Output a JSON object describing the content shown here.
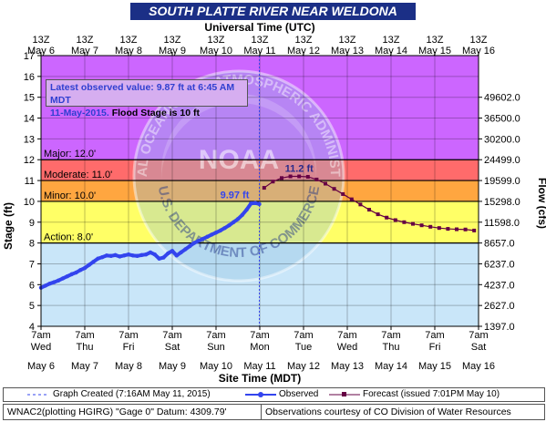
{
  "header": {
    "title": "SOUTH PLATTE RIVER NEAR WELDONA",
    "top_axis_title": "Universal Time (UTC)",
    "bottom_axis_title": "Site Time (MDT)"
  },
  "observation_box": {
    "line1": "Latest observed value: 9.87 ft at 6:45 AM MDT",
    "line2_blue": "11-May-2015.",
    "line2_black": " Flood Stage is 10 ft"
  },
  "watermark": {
    "text": "NATIONAL OCEANIC AND ATMOSPHERIC ADMINISTRATION",
    "bottom_text": "U.S. DEPARTMENT OF COMMERCE",
    "logo": "NOAA"
  },
  "legend": {
    "created": "Graph Created (7:16AM May 11, 2015)",
    "observed": "Observed",
    "forecast": "Forecast (issued 7:01PM May 10)"
  },
  "footer": {
    "left": "WNAC2(plotting HGIRG) \"Gage 0\" Datum: 4309.79'",
    "right": "Observations courtesy of CO Division of Water Resources"
  },
  "chart_data": {
    "type": "line",
    "title": "SOUTH PLATTE RIVER NEAR WELDONA",
    "ylabel": "Stage (ft)",
    "y2label": "Flow (cfs)",
    "xlabel": "Site Time (MDT)",
    "x2label": "Universal Time (UTC)",
    "ylim": [
      4,
      17
    ],
    "yticks": [
      4,
      5,
      6,
      7,
      8,
      9,
      10,
      11,
      12,
      13,
      14,
      15,
      16,
      17
    ],
    "flow_ticks": [
      {
        "stage": 4,
        "label": "1397.0"
      },
      {
        "stage": 5,
        "label": "2627.0"
      },
      {
        "stage": 6,
        "label": "4237.0"
      },
      {
        "stage": 7,
        "label": "6237.0"
      },
      {
        "stage": 8,
        "label": "8657.0"
      },
      {
        "stage": 9,
        "label": "11598.0"
      },
      {
        "stage": 10,
        "label": "15298.0"
      },
      {
        "stage": 11,
        "label": "19599.0"
      },
      {
        "stage": 12,
        "label": "24499.0"
      },
      {
        "stage": 13,
        "label": "30200.0"
      },
      {
        "stage": 14,
        "label": "36500.0"
      },
      {
        "stage": 15,
        "label": "49602.0"
      }
    ],
    "xlim_days": [
      0,
      10
    ],
    "utc_ticks": [
      {
        "t1": "13Z",
        "t2": "May 6"
      },
      {
        "t1": "13Z",
        "t2": "May 7"
      },
      {
        "t1": "13Z",
        "t2": "May 8"
      },
      {
        "t1": "13Z",
        "t2": "May 9"
      },
      {
        "t1": "13Z",
        "t2": "May 10"
      },
      {
        "t1": "13Z",
        "t2": "May 11"
      },
      {
        "t1": "13Z",
        "t2": "May 12"
      },
      {
        "t1": "13Z",
        "t2": "May 13"
      },
      {
        "t1": "13Z",
        "t2": "May 14"
      },
      {
        "t1": "13Z",
        "t2": "May 15"
      },
      {
        "t1": "13Z",
        "t2": "May 16"
      }
    ],
    "local_ticks": [
      {
        "t1": "7am",
        "t2": "Wed",
        "t3": "May 6"
      },
      {
        "t1": "7am",
        "t2": "Thu",
        "t3": "May 7"
      },
      {
        "t1": "7am",
        "t2": "Fri",
        "t3": "May 8"
      },
      {
        "t1": "7am",
        "t2": "Sat",
        "t3": "May 9"
      },
      {
        "t1": "7am",
        "t2": "Sun",
        "t3": "May 10"
      },
      {
        "t1": "7am",
        "t2": "Mon",
        "t3": "May 11"
      },
      {
        "t1": "7am",
        "t2": "Tue",
        "t3": "May 12"
      },
      {
        "t1": "7am",
        "t2": "Wed",
        "t3": "May 13"
      },
      {
        "t1": "7am",
        "t2": "Thu",
        "t3": "May 14"
      },
      {
        "t1": "7am",
        "t2": "Fri",
        "t3": "May 15"
      },
      {
        "t1": "7am",
        "t2": "Sat",
        "t3": "May 16"
      }
    ],
    "flood_categories": [
      {
        "name": "Action",
        "label": "Action: 8.0'",
        "from": 8,
        "to": 10,
        "color": "#ffff66"
      },
      {
        "name": "Minor",
        "label": "Minor: 10.0'",
        "from": 10,
        "to": 11,
        "color": "#ffa640"
      },
      {
        "name": "Moderate",
        "label": "Moderate: 11.0'",
        "from": 11,
        "to": 12,
        "color": "#ff6b6b"
      },
      {
        "name": "Major",
        "label": "Major: 12.0'",
        "from": 12,
        "to": 17,
        "color": "#cc66ff"
      }
    ],
    "below_action_color": "#c9e6f9",
    "now_day": 4.99,
    "series": [
      {
        "name": "Observed",
        "color": "#3344ee",
        "x": [
          0,
          0.1,
          0.2,
          0.3,
          0.4,
          0.5,
          0.6,
          0.7,
          0.8,
          0.9,
          1.0,
          1.1,
          1.2,
          1.3,
          1.4,
          1.5,
          1.6,
          1.7,
          1.8,
          1.9,
          2.0,
          2.1,
          2.2,
          2.3,
          2.4,
          2.5,
          2.6,
          2.7,
          2.8,
          2.9,
          3.0,
          3.1,
          3.2,
          3.3,
          3.4,
          3.5,
          3.6,
          3.7,
          3.8,
          3.9,
          4.0,
          4.1,
          4.2,
          4.3,
          4.4,
          4.5,
          4.6,
          4.7,
          4.8,
          4.9,
          4.99
        ],
        "y": [
          5.85,
          5.95,
          6.05,
          6.12,
          6.2,
          6.3,
          6.4,
          6.5,
          6.58,
          6.7,
          6.8,
          6.95,
          7.1,
          7.25,
          7.32,
          7.4,
          7.38,
          7.42,
          7.35,
          7.4,
          7.45,
          7.4,
          7.38,
          7.42,
          7.45,
          7.55,
          7.45,
          7.25,
          7.3,
          7.5,
          7.62,
          7.4,
          7.55,
          7.7,
          7.85,
          8.0,
          8.1,
          8.2,
          8.3,
          8.4,
          8.5,
          8.6,
          8.72,
          8.85,
          9.0,
          9.15,
          9.35,
          9.6,
          9.9,
          9.92,
          9.87
        ],
        "peak_label": "9.97 ft",
        "peak_x": 4.8,
        "peak_y": 9.97
      },
      {
        "name": "Forecast (issued 7:01PM May 10)",
        "color": "#660044",
        "x": [
          5.1,
          5.3,
          5.5,
          5.7,
          5.9,
          6.1,
          6.3,
          6.5,
          6.7,
          6.9,
          7.1,
          7.3,
          7.5,
          7.7,
          7.9,
          8.1,
          8.3,
          8.5,
          8.7,
          8.9,
          9.1,
          9.3,
          9.5,
          9.7,
          9.9
        ],
        "y": [
          10.65,
          10.95,
          11.12,
          11.2,
          11.2,
          11.18,
          11.05,
          10.85,
          10.6,
          10.35,
          10.1,
          9.85,
          9.6,
          9.38,
          9.22,
          9.1,
          9.0,
          8.92,
          8.85,
          8.78,
          8.72,
          8.68,
          8.66,
          8.65,
          8.6
        ],
        "peak_label": "11.2 ft",
        "peak_x": 5.9,
        "peak_y": 11.2
      }
    ]
  }
}
